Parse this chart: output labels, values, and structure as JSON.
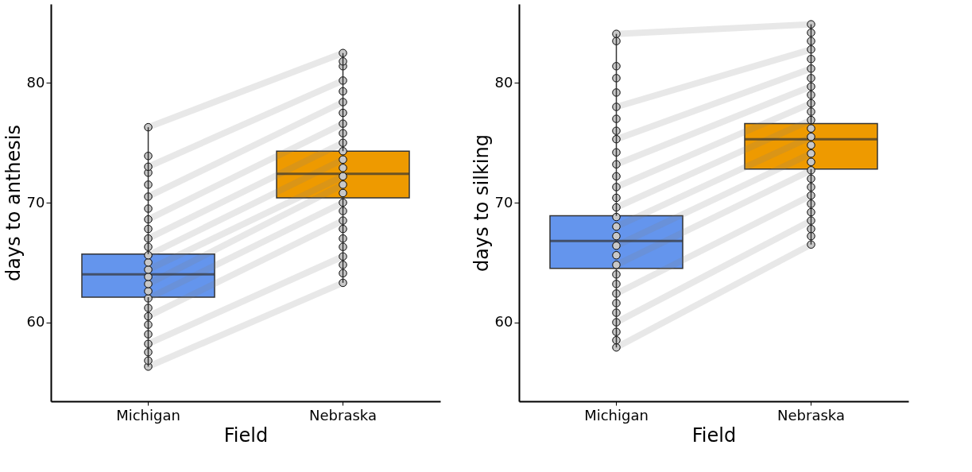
{
  "chart_data": [
    {
      "type": "box",
      "categories": [
        "Michigan",
        "Nebraska"
      ],
      "xlabel": "Field",
      "ylabel": "days to anthesis",
      "ylim": [
        53.4,
        86.6
      ],
      "yticks": [
        60,
        70,
        80
      ],
      "grid": false,
      "legend": false,
      "colors": [
        "#6495ed",
        "#ee9a00"
      ],
      "boxes": [
        {
          "low": 56.3,
          "q1": 62.1,
          "median": 64.0,
          "q3": 65.7,
          "high": 76.3
        },
        {
          "low": 63.3,
          "q1": 70.4,
          "median": 72.4,
          "q3": 74.3,
          "high": 82.5
        }
      ],
      "series": [
        {
          "type": "scatter",
          "color": "#c8c8c8",
          "marker": "circle",
          "x": [
            "Michigan",
            "Michigan",
            "Michigan",
            "Michigan",
            "Michigan",
            "Michigan",
            "Michigan",
            "Michigan",
            "Michigan",
            "Michigan",
            "Michigan",
            "Michigan",
            "Michigan",
            "Michigan",
            "Michigan",
            "Michigan",
            "Michigan",
            "Michigan",
            "Michigan",
            "Michigan",
            "Michigan",
            "Michigan",
            "Michigan",
            "Michigan",
            "Michigan",
            "Michigan",
            "Michigan",
            "Nebraska",
            "Nebraska",
            "Nebraska",
            "Nebraska",
            "Nebraska",
            "Nebraska",
            "Nebraska",
            "Nebraska",
            "Nebraska",
            "Nebraska",
            "Nebraska",
            "Nebraska",
            "Nebraska",
            "Nebraska",
            "Nebraska",
            "Nebraska",
            "Nebraska",
            "Nebraska",
            "Nebraska",
            "Nebraska",
            "Nebraska",
            "Nebraska",
            "Nebraska",
            "Nebraska",
            "Nebraska",
            "Nebraska"
          ],
          "values": [
            56.3,
            56.8,
            57.5,
            58.2,
            59.0,
            59.8,
            60.5,
            61.2,
            62.0,
            62.6,
            63.2,
            63.8,
            64.4,
            65.0,
            65.6,
            66.3,
            67.0,
            67.8,
            68.6,
            69.5,
            70.5,
            71.5,
            72.5,
            73.0,
            73.9,
            null,
            76.3,
            63.3,
            64.1,
            64.8,
            65.5,
            66.3,
            67.0,
            67.8,
            68.5,
            69.3,
            70.0,
            70.8,
            71.5,
            72.2,
            72.9,
            73.6,
            74.3,
            75.0,
            75.8,
            76.6,
            77.5,
            78.4,
            79.3,
            80.2,
            81.4,
            81.8,
            82.5
          ]
        },
        {
          "type": "line",
          "color": "#808080",
          "x": [
            "Michigan",
            "Nebraska"
          ],
          "values": [
            56.3,
            63.3
          ]
        },
        {
          "type": "line",
          "color": "#808080",
          "x": [
            "Michigan",
            "Nebraska"
          ],
          "values": [
            58.2,
            65.5
          ]
        },
        {
          "type": "line",
          "color": "#808080",
          "x": [
            "Michigan",
            "Nebraska"
          ],
          "values": [
            60.5,
            68.5
          ]
        },
        {
          "type": "line",
          "color": "#808080",
          "x": [
            "Michigan",
            "Nebraska"
          ],
          "values": [
            62.0,
            70.0
          ]
        },
        {
          "type": "line",
          "color": "#808080",
          "x": [
            "Michigan",
            "Nebraska"
          ],
          "values": [
            63.2,
            71.5
          ]
        },
        {
          "type": "line",
          "color": "#808080",
          "x": [
            "Michigan",
            "Nebraska"
          ],
          "values": [
            64.4,
            72.2
          ]
        },
        {
          "type": "line",
          "color": "#808080",
          "x": [
            "Michigan",
            "Nebraska"
          ],
          "values": [
            65.6,
            73.6
          ]
        },
        {
          "type": "line",
          "color": "#808080",
          "x": [
            "Michigan",
            "Nebraska"
          ],
          "values": [
            67.0,
            75.0
          ]
        },
        {
          "type": "line",
          "color": "#808080",
          "x": [
            "Michigan",
            "Nebraska"
          ],
          "values": [
            68.6,
            76.6
          ]
        },
        {
          "type": "line",
          "color": "#808080",
          "x": [
            "Michigan",
            "Nebraska"
          ],
          "values": [
            70.5,
            78.4
          ]
        },
        {
          "type": "line",
          "color": "#808080",
          "x": [
            "Michigan",
            "Nebraska"
          ],
          "values": [
            73.0,
            80.2
          ]
        },
        {
          "type": "line",
          "color": "#808080",
          "x": [
            "Michigan",
            "Nebraska"
          ],
          "values": [
            76.3,
            82.5
          ]
        }
      ]
    },
    {
      "type": "box",
      "categories": [
        "Michigan",
        "Nebraska"
      ],
      "xlabel": "Field",
      "ylabel": "days to silking",
      "ylim": [
        53.4,
        86.6
      ],
      "yticks": [
        60,
        70,
        80
      ],
      "grid": false,
      "legend": false,
      "colors": [
        "#6495ed",
        "#ee9a00"
      ],
      "boxes": [
        {
          "low": 57.9,
          "q1": 64.5,
          "median": 66.8,
          "q3": 68.9,
          "high": 84.1
        },
        {
          "low": 66.5,
          "q1": 72.8,
          "median": 75.3,
          "q3": 76.6,
          "high": 84.9
        }
      ],
      "series": [
        {
          "type": "scatter",
          "color": "#c8c8c8",
          "marker": "circle",
          "x": [
            "Michigan",
            "Michigan",
            "Michigan",
            "Michigan",
            "Michigan",
            "Michigan",
            "Michigan",
            "Michigan",
            "Michigan",
            "Michigan",
            "Michigan",
            "Michigan",
            "Michigan",
            "Michigan",
            "Michigan",
            "Michigan",
            "Michigan",
            "Michigan",
            "Michigan",
            "Michigan",
            "Michigan",
            "Michigan",
            "Michigan",
            "Michigan",
            "Michigan",
            "Michigan",
            "Michigan",
            "Michigan",
            "Michigan",
            "Michigan",
            "Nebraska",
            "Nebraska",
            "Nebraska",
            "Nebraska",
            "Nebraska",
            "Nebraska",
            "Nebraska",
            "Nebraska",
            "Nebraska",
            "Nebraska",
            "Nebraska",
            "Nebraska",
            "Nebraska",
            "Nebraska",
            "Nebraska",
            "Nebraska",
            "Nebraska",
            "Nebraska",
            "Nebraska",
            "Nebraska",
            "Nebraska",
            "Nebraska",
            "Nebraska",
            "Nebraska",
            "Nebraska",
            "Nebraska",
            "Nebraska"
          ],
          "values": [
            57.9,
            58.5,
            59.2,
            60.0,
            60.8,
            61.6,
            62.4,
            63.2,
            64.0,
            64.8,
            65.6,
            66.4,
            67.2,
            68.0,
            68.8,
            69.6,
            70.4,
            71.3,
            72.2,
            73.2,
            74.2,
            75.3,
            76.0,
            77.0,
            78.0,
            79.2,
            80.4,
            81.4,
            83.5,
            84.1,
            66.5,
            67.2,
            67.8,
            68.5,
            69.2,
            69.9,
            70.6,
            71.3,
            72.0,
            72.7,
            73.4,
            74.1,
            74.8,
            75.5,
            76.2,
            76.9,
            77.6,
            78.3,
            79.0,
            79.7,
            80.4,
            81.2,
            82.0,
            82.8,
            83.5,
            84.2,
            84.9
          ]
        },
        {
          "type": "line",
          "color": "#808080",
          "x": [
            "Michigan",
            "Nebraska"
          ],
          "values": [
            57.9,
            66.5
          ]
        },
        {
          "type": "line",
          "color": "#808080",
          "x": [
            "Michigan",
            "Nebraska"
          ],
          "values": [
            60.0,
            68.5
          ]
        },
        {
          "type": "line",
          "color": "#808080",
          "x": [
            "Michigan",
            "Nebraska"
          ],
          "values": [
            62.4,
            70.6
          ]
        },
        {
          "type": "line",
          "color": "#808080",
          "x": [
            "Michigan",
            "Nebraska"
          ],
          "values": [
            64.8,
            72.7
          ]
        },
        {
          "type": "line",
          "color": "#808080",
          "x": [
            "Michigan",
            "Nebraska"
          ],
          "values": [
            66.4,
            74.1
          ]
        },
        {
          "type": "line",
          "color": "#808080",
          "x": [
            "Michigan",
            "Nebraska"
          ],
          "values": [
            68.0,
            75.5
          ]
        },
        {
          "type": "line",
          "color": "#808080",
          "x": [
            "Michigan",
            "Nebraska"
          ],
          "values": [
            69.6,
            76.9
          ]
        },
        {
          "type": "line",
          "color": "#808080",
          "x": [
            "Michigan",
            "Nebraska"
          ],
          "values": [
            71.3,
            78.3
          ]
        },
        {
          "type": "line",
          "color": "#808080",
          "x": [
            "Michigan",
            "Nebraska"
          ],
          "values": [
            73.2,
            79.7
          ]
        },
        {
          "type": "line",
          "color": "#808080",
          "x": [
            "Michigan",
            "Nebraska"
          ],
          "values": [
            75.3,
            81.2
          ]
        },
        {
          "type": "line",
          "color": "#808080",
          "x": [
            "Michigan",
            "Nebraska"
          ],
          "values": [
            78.0,
            82.8
          ]
        },
        {
          "type": "line",
          "color": "#808080",
          "x": [
            "Michigan",
            "Nebraska"
          ],
          "values": [
            84.1,
            84.9
          ]
        }
      ]
    }
  ]
}
